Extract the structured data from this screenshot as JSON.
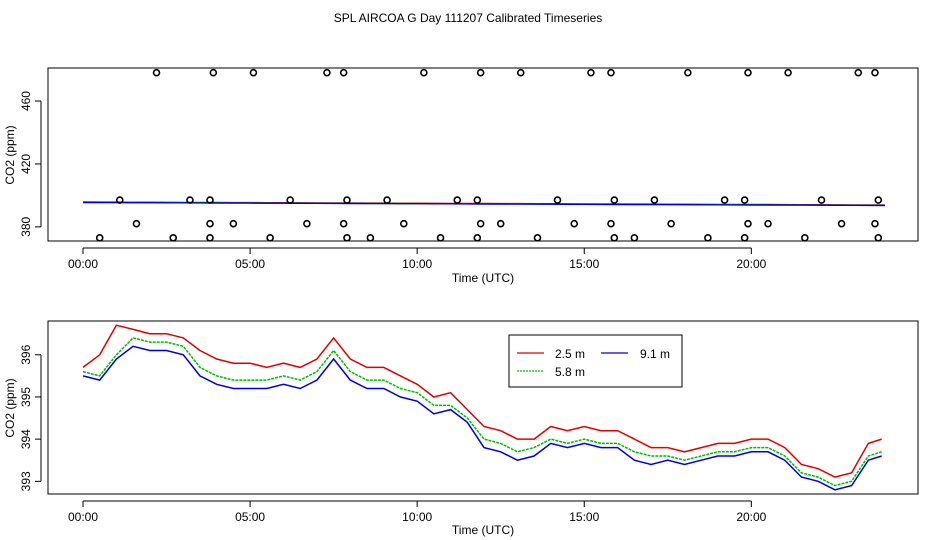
{
  "title": "SPL AIRCOA G  Day 111207  Calibrated Timeseries",
  "colors": {
    "red": "#e00000",
    "green": "#00bb00",
    "blue": "#0000dd",
    "black": "#000000"
  },
  "chart_data": [
    {
      "type": "scatter",
      "panel": "top",
      "xlabel": "Time (UTC)",
      "ylabel": "CO2 (ppm)",
      "xlim": [
        -1,
        24
      ],
      "ylim": [
        371,
        481
      ],
      "xticks": [
        0,
        5,
        10,
        15,
        20
      ],
      "xtick_labels": [
        "00:00",
        "05:00",
        "10:00",
        "15:00",
        "20:00"
      ],
      "yticks": [
        380,
        420,
        460
      ],
      "ytick_labels": [
        "380",
        "420",
        "460"
      ],
      "points": [
        [
          2.2,
          478
        ],
        [
          3.9,
          478
        ],
        [
          5.1,
          478
        ],
        [
          7.3,
          478
        ],
        [
          7.8,
          478
        ],
        [
          10.2,
          478
        ],
        [
          11.9,
          478
        ],
        [
          13.1,
          478
        ],
        [
          15.2,
          478
        ],
        [
          15.8,
          478
        ],
        [
          18.1,
          478
        ],
        [
          19.9,
          478
        ],
        [
          21.1,
          478
        ],
        [
          23.2,
          478
        ],
        [
          23.7,
          478
        ],
        [
          1.1,
          397
        ],
        [
          3.2,
          397
        ],
        [
          3.8,
          397
        ],
        [
          6.2,
          397
        ],
        [
          7.9,
          397
        ],
        [
          9.1,
          397
        ],
        [
          11.2,
          397
        ],
        [
          11.8,
          397
        ],
        [
          14.2,
          397
        ],
        [
          15.9,
          397
        ],
        [
          17.1,
          397
        ],
        [
          19.2,
          397
        ],
        [
          19.8,
          397
        ],
        [
          22.1,
          397
        ],
        [
          23.8,
          397
        ],
        [
          1.6,
          382
        ],
        [
          3.8,
          382
        ],
        [
          4.5,
          382
        ],
        [
          6.7,
          382
        ],
        [
          7.8,
          382
        ],
        [
          9.6,
          382
        ],
        [
          11.9,
          382
        ],
        [
          12.5,
          382
        ],
        [
          14.7,
          382
        ],
        [
          15.8,
          382
        ],
        [
          17.6,
          382
        ],
        [
          19.9,
          382
        ],
        [
          20.5,
          382
        ],
        [
          22.7,
          382
        ],
        [
          23.7,
          382
        ],
        [
          0.5,
          373
        ],
        [
          2.7,
          373
        ],
        [
          3.8,
          373
        ],
        [
          5.6,
          373
        ],
        [
          7.9,
          373
        ],
        [
          8.6,
          373
        ],
        [
          10.7,
          373
        ],
        [
          11.8,
          373
        ],
        [
          13.6,
          373
        ],
        [
          15.9,
          373
        ],
        [
          16.5,
          373
        ],
        [
          18.7,
          373
        ],
        [
          19.8,
          373
        ],
        [
          21.6,
          373
        ],
        [
          23.8,
          373
        ]
      ],
      "series_lines": [
        {
          "name": "2.5 m",
          "color": "#e00000",
          "start": 395.8,
          "end": 393.9
        },
        {
          "name": "5.8 m",
          "color": "#00bb00",
          "start": 395.6,
          "end": 393.7
        },
        {
          "name": "9.1 m",
          "color": "#0000dd",
          "start": 395.5,
          "end": 393.6
        }
      ]
    },
    {
      "type": "line",
      "panel": "bottom",
      "xlabel": "Time (UTC)",
      "ylabel": "CO2 (ppm)",
      "xlim": [
        -1,
        24
      ],
      "ylim": [
        392.7,
        396.8
      ],
      "xticks": [
        0,
        5,
        10,
        15,
        20
      ],
      "xtick_labels": [
        "00:00",
        "05:00",
        "10:00",
        "15:00",
        "20:00"
      ],
      "yticks": [
        393,
        394,
        395,
        396
      ],
      "ytick_labels": [
        "393",
        "394",
        "395",
        "396"
      ],
      "legend": {
        "position": "top-center",
        "entries": [
          "2.5 m",
          "9.1 m",
          "5.8 m"
        ]
      },
      "x": [
        0,
        0.5,
        1,
        1.5,
        2,
        2.5,
        3,
        3.5,
        4,
        4.5,
        5,
        5.5,
        6,
        6.5,
        7,
        7.5,
        8,
        8.5,
        9,
        9.5,
        10,
        10.5,
        11,
        11.5,
        12,
        12.5,
        13,
        13.5,
        14,
        14.5,
        15,
        15.5,
        16,
        16.5,
        17,
        17.5,
        18,
        18.5,
        19,
        19.5,
        20,
        20.5,
        21,
        21.5,
        22,
        22.5,
        23,
        23.5,
        23.9
      ],
      "series": [
        {
          "name": "2.5 m",
          "color": "#e00000",
          "values": [
            395.7,
            396.0,
            396.7,
            396.6,
            396.5,
            396.5,
            396.4,
            396.1,
            395.9,
            395.8,
            395.8,
            395.7,
            395.8,
            395.7,
            395.9,
            396.4,
            395.9,
            395.7,
            395.7,
            395.5,
            395.3,
            395.0,
            395.1,
            394.7,
            394.3,
            394.2,
            394.0,
            394.0,
            394.3,
            394.2,
            394.3,
            394.2,
            394.2,
            394.0,
            393.8,
            393.8,
            393.7,
            393.8,
            393.9,
            393.9,
            394.0,
            394.0,
            393.8,
            393.4,
            393.3,
            393.1,
            393.2,
            393.9,
            394.0
          ]
        },
        {
          "name": "5.8 m",
          "color": "#00bb00",
          "values": [
            395.6,
            395.5,
            396.0,
            396.4,
            396.3,
            396.3,
            396.2,
            395.7,
            395.5,
            395.4,
            395.4,
            395.4,
            395.5,
            395.4,
            395.6,
            396.1,
            395.6,
            395.4,
            395.4,
            395.2,
            395.1,
            394.8,
            394.8,
            394.5,
            394.0,
            393.9,
            393.7,
            393.8,
            394.0,
            393.9,
            394.0,
            393.9,
            393.9,
            393.7,
            393.6,
            393.6,
            393.5,
            393.6,
            393.7,
            393.7,
            393.8,
            393.8,
            393.6,
            393.2,
            393.1,
            392.9,
            393.0,
            393.6,
            393.7
          ]
        },
        {
          "name": "9.1 m",
          "color": "#0000dd",
          "values": [
            395.5,
            395.4,
            395.9,
            396.2,
            396.1,
            396.1,
            396.0,
            395.5,
            395.3,
            395.2,
            395.2,
            395.2,
            395.3,
            395.2,
            395.4,
            395.9,
            395.4,
            395.2,
            395.2,
            395.0,
            394.9,
            394.6,
            394.7,
            394.4,
            393.8,
            393.7,
            393.5,
            393.6,
            393.9,
            393.8,
            393.9,
            393.8,
            393.8,
            393.5,
            393.4,
            393.5,
            393.4,
            393.5,
            393.6,
            393.6,
            393.7,
            393.7,
            393.5,
            393.1,
            393.0,
            392.8,
            392.9,
            393.5,
            393.6
          ]
        }
      ]
    }
  ]
}
